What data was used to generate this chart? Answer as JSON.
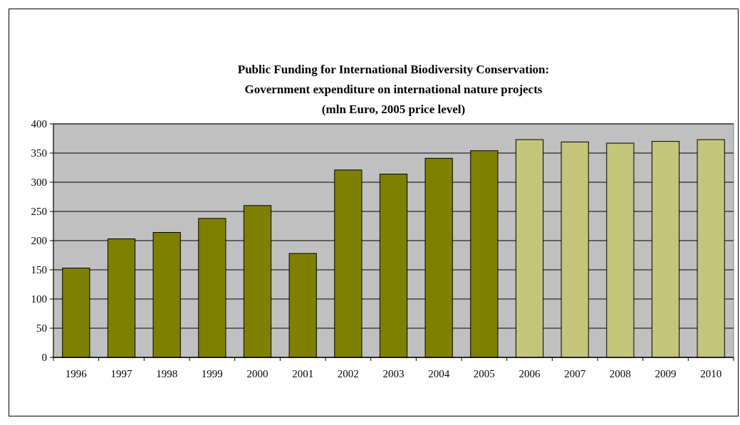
{
  "chart_data": {
    "type": "bar",
    "title": "Public Funding for International Biodiversity Conservation:\nGovernment expenditure on international nature projects\n(mln Euro, 2005 price level)",
    "categories": [
      "1996",
      "1997",
      "1998",
      "1999",
      "2000",
      "2001",
      "2002",
      "2003",
      "2004",
      "2005",
      "2006",
      "2007",
      "2008",
      "2009",
      "2010"
    ],
    "values": [
      153,
      203,
      214,
      238,
      260,
      178,
      321,
      314,
      341,
      354,
      373,
      369,
      367,
      370,
      373
    ],
    "colors": [
      "#808000",
      "#808000",
      "#808000",
      "#808000",
      "#808000",
      "#808000",
      "#808000",
      "#808000",
      "#808000",
      "#808000",
      "#c4c47a",
      "#c4c47a",
      "#c4c47a",
      "#c4c47a",
      "#c4c47a"
    ],
    "ylim": [
      0,
      400
    ],
    "yticks": [
      0,
      50,
      100,
      150,
      200,
      250,
      300,
      350,
      400
    ],
    "grid": "y"
  }
}
